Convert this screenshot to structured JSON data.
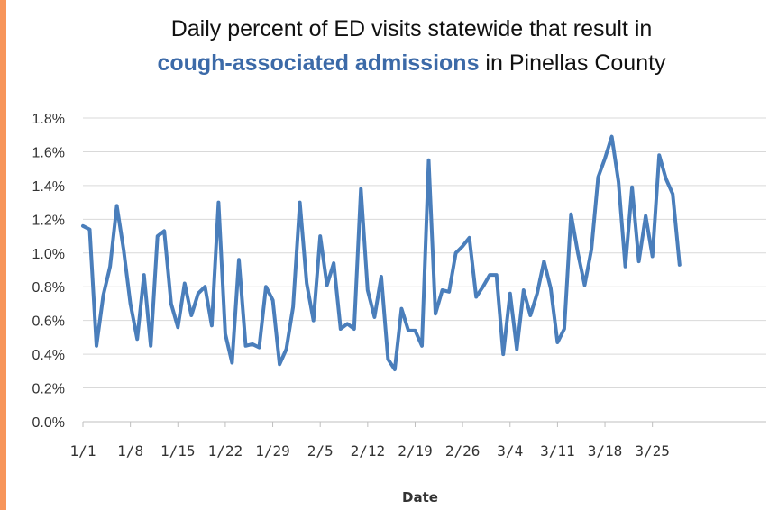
{
  "chart_data": {
    "type": "line",
    "title": "Daily percent of ED visits statewide that result in cough-associated admissions in Pinellas County",
    "title_line1": "Daily percent of ED visits statewide that result in",
    "title_highlight": "cough-associated admissions",
    "title_rest": " in Pinellas County",
    "xlabel": "Date",
    "ylabel": "",
    "ylim": [
      0,
      0.018
    ],
    "yticks": [
      "0.0%",
      "0.2%",
      "0.4%",
      "0.6%",
      "0.8%",
      "1.0%",
      "1.2%",
      "1.4%",
      "1.6%",
      "1.8%"
    ],
    "xticks": [
      "1/1",
      "1/8",
      "1/15",
      "1/22",
      "1/29",
      "2/5",
      "2/12",
      "2/19",
      "2/26",
      "3/4",
      "3/11",
      "3/18",
      "3/25"
    ],
    "grid": true,
    "legend": "none",
    "line_color": "#4a7ebb",
    "dates": [
      "1/1",
      "1/2",
      "1/3",
      "1/4",
      "1/5",
      "1/6",
      "1/7",
      "1/8",
      "1/9",
      "1/10",
      "1/11",
      "1/12",
      "1/13",
      "1/14",
      "1/15",
      "1/16",
      "1/17",
      "1/18",
      "1/19",
      "1/20",
      "1/21",
      "1/22",
      "1/23",
      "1/24",
      "1/25",
      "1/26",
      "1/27",
      "1/28",
      "1/29",
      "1/30",
      "1/31",
      "2/1",
      "2/2",
      "2/3",
      "2/4",
      "2/5",
      "2/6",
      "2/7",
      "2/8",
      "2/9",
      "2/10",
      "2/11",
      "2/12",
      "2/13",
      "2/14",
      "2/15",
      "2/16",
      "2/17",
      "2/18",
      "2/19",
      "2/20",
      "2/21",
      "2/22",
      "2/23",
      "2/24",
      "2/25",
      "2/26",
      "2/27",
      "2/28",
      "2/29",
      "3/1",
      "3/2",
      "3/3",
      "3/4",
      "3/5",
      "3/6",
      "3/7",
      "3/8",
      "3/9",
      "3/10",
      "3/11",
      "3/12",
      "3/13",
      "3/14",
      "3/15",
      "3/16",
      "3/17",
      "3/18",
      "3/19",
      "3/20",
      "3/21",
      "3/22",
      "3/23",
      "3/24",
      "3/25",
      "3/26",
      "3/27",
      "3/28",
      "3/29"
    ],
    "values": [
      0.0116,
      0.0114,
      0.0045,
      0.0075,
      0.0092,
      0.0128,
      0.0102,
      0.007,
      0.0049,
      0.0087,
      0.0045,
      0.011,
      0.0113,
      0.007,
      0.0056,
      0.0082,
      0.0063,
      0.0076,
      0.008,
      0.0057,
      0.013,
      0.0052,
      0.0035,
      0.0096,
      0.0045,
      0.0046,
      0.0044,
      0.008,
      0.0072,
      0.0034,
      0.0043,
      0.0068,
      0.013,
      0.0082,
      0.006,
      0.011,
      0.0081,
      0.0094,
      0.0055,
      0.0058,
      0.0055,
      0.0138,
      0.0078,
      0.0062,
      0.0086,
      0.0037,
      0.0031,
      0.0067,
      0.0054,
      0.0054,
      0.0045,
      0.0155,
      0.0064,
      0.0078,
      0.0077,
      0.01,
      0.0104,
      0.0109,
      0.0074,
      0.008,
      0.0087,
      0.0087,
      0.004,
      0.0076,
      0.0043,
      0.0078,
      0.0063,
      0.0076,
      0.0095,
      0.0079,
      0.0047,
      0.0055,
      0.0123,
      0.01,
      0.0081,
      0.0102,
      0.0145,
      0.0156,
      0.0169,
      0.0142,
      0.0092,
      0.0139,
      0.0095,
      0.0122,
      0.0098,
      0.0158,
      0.0144,
      0.0135,
      0.0093
    ]
  }
}
